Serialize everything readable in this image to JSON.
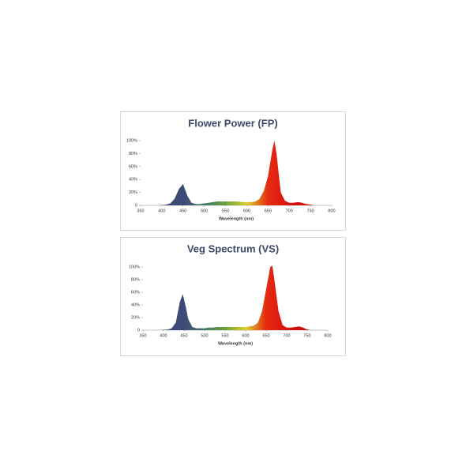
{
  "chart_data": [
    {
      "type": "area",
      "title": "Flower Power (FP)",
      "x_label": "Wavelength  (nm)",
      "x": [
        380,
        390,
        400,
        410,
        420,
        430,
        440,
        450,
        460,
        470,
        480,
        490,
        500,
        510,
        520,
        530,
        540,
        550,
        560,
        570,
        580,
        590,
        600,
        610,
        620,
        630,
        640,
        650,
        660,
        665,
        670,
        680,
        690,
        700,
        710,
        720,
        730,
        740,
        750,
        760
      ],
      "values": [
        0,
        0,
        0.5,
        1,
        3,
        10,
        25,
        33,
        15,
        4,
        2,
        2,
        3,
        4,
        5,
        6,
        6,
        6,
        6,
        6,
        6,
        5,
        5,
        5,
        6,
        10,
        22,
        45,
        85,
        100,
        80,
        20,
        7,
        4,
        4,
        5,
        4,
        2,
        1,
        0
      ],
      "xlim": [
        350,
        800
      ],
      "xticks": [
        350,
        400,
        450,
        500,
        550,
        600,
        650,
        700,
        750,
        800
      ],
      "ylim": [
        0,
        100
      ],
      "yticks": [
        0,
        {
          "value": 20,
          "label": "20%"
        },
        {
          "value": 40,
          "label": "40%"
        },
        {
          "value": 60,
          "label": "60%"
        },
        {
          "value": 80,
          "label": "80%"
        },
        {
          "value": 100,
          "label": "100%"
        }
      ],
      "colors": [
        "#3d4a78",
        "#3d4a78",
        "#3d4a78",
        "#3f7a6a",
        "#6aa13c",
        "#d9d12a",
        "#e62a12",
        "#d9120f",
        "#c8100e",
        "#c8100e"
      ]
    },
    {
      "type": "area",
      "title": "Veg Spectrum (VS)",
      "x_label": "Wavelength  (nm)",
      "x": [
        380,
        390,
        400,
        410,
        420,
        430,
        440,
        447,
        455,
        460,
        470,
        480,
        490,
        500,
        510,
        520,
        530,
        540,
        550,
        560,
        570,
        580,
        590,
        600,
        610,
        620,
        630,
        640,
        650,
        660,
        665,
        670,
        680,
        690,
        700,
        710,
        720,
        730,
        740,
        750,
        760
      ],
      "values": [
        0,
        0,
        0.5,
        1,
        3,
        12,
        45,
        57,
        35,
        18,
        5,
        3,
        3,
        3,
        4,
        4,
        5,
        5,
        5,
        5,
        5,
        5,
        5,
        5,
        6,
        7,
        12,
        30,
        65,
        100,
        102,
        80,
        30,
        8,
        4,
        4,
        5,
        6,
        4,
        1,
        0
      ],
      "xlim": [
        350,
        800
      ],
      "xticks": [
        350,
        400,
        450,
        500,
        550,
        600,
        650,
        700,
        750,
        800
      ],
      "ylim": [
        0,
        100
      ],
      "yticks": [
        0,
        {
          "value": 20,
          "label": "20%"
        },
        {
          "value": 40,
          "label": "40%"
        },
        {
          "value": 60,
          "label": "60%"
        },
        {
          "value": 80,
          "label": "80%"
        },
        {
          "value": 100,
          "label": "100%"
        }
      ],
      "colors": [
        "#3d4a78",
        "#3d4a78",
        "#3d4a78",
        "#3f7a6a",
        "#6aa13c",
        "#d9d12a",
        "#e62a12",
        "#d9120f",
        "#c8100e",
        "#c8100e"
      ]
    }
  ]
}
